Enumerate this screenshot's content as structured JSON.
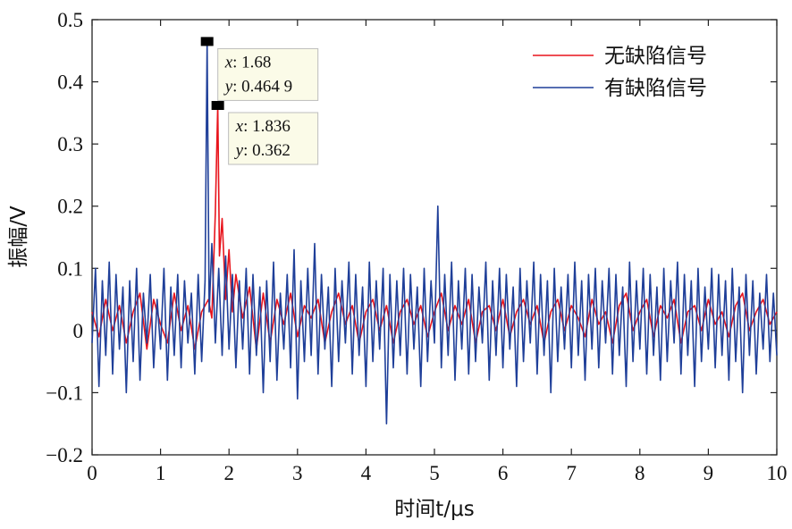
{
  "chart_data": {
    "type": "line",
    "xlabel": "时间t/μs",
    "ylabel": "振幅/V",
    "xlim": [
      0,
      10
    ],
    "ylim": [
      -0.2,
      0.5
    ],
    "x_ticks": [
      "0",
      "1",
      "2",
      "3",
      "4",
      "5",
      "6",
      "7",
      "8",
      "9",
      "10"
    ],
    "y_ticks": [
      "−0.2",
      "−0.1",
      "0",
      "0.1",
      "0.2",
      "0.3",
      "0.4",
      "0.5"
    ],
    "grid": false,
    "legend_position": "top-right",
    "series": [
      {
        "name": "无缺陷信号",
        "color": "#e8141c",
        "points": [
          [
            0,
            0.03
          ],
          [
            0.1,
            -0.01
          ],
          [
            0.2,
            0.05
          ],
          [
            0.3,
            0.0
          ],
          [
            0.4,
            0.04
          ],
          [
            0.5,
            -0.02
          ],
          [
            0.6,
            0.03
          ],
          [
            0.7,
            0.06
          ],
          [
            0.8,
            -0.03
          ],
          [
            0.9,
            0.05
          ],
          [
            1.0,
            0.01
          ],
          [
            1.1,
            -0.02
          ],
          [
            1.2,
            0.06
          ],
          [
            1.3,
            0.0
          ],
          [
            1.4,
            0.04
          ],
          [
            1.5,
            -0.03
          ],
          [
            1.6,
            0.03
          ],
          [
            1.7,
            0.05
          ],
          [
            1.75,
            0.02
          ],
          [
            1.8,
            0.19
          ],
          [
            1.836,
            0.362
          ],
          [
            1.86,
            0.12
          ],
          [
            1.9,
            0.18
          ],
          [
            1.95,
            0.05
          ],
          [
            2.0,
            0.13
          ],
          [
            2.05,
            0.03
          ],
          [
            2.1,
            0.09
          ],
          [
            2.2,
            0.02
          ],
          [
            2.3,
            0.07
          ],
          [
            2.4,
            -0.03
          ],
          [
            2.5,
            0.06
          ],
          [
            2.6,
            -0.02
          ],
          [
            2.7,
            0.05
          ],
          [
            2.8,
            0.01
          ],
          [
            2.9,
            0.06
          ],
          [
            3.0,
            -0.01
          ],
          [
            3.1,
            0.04
          ],
          [
            3.2,
            0.02
          ],
          [
            3.3,
            0.05
          ],
          [
            3.4,
            -0.02
          ],
          [
            3.5,
            0.03
          ],
          [
            3.6,
            0.06
          ],
          [
            3.7,
            0.01
          ],
          [
            3.8,
            0.04
          ],
          [
            3.9,
            -0.02
          ],
          [
            4.0,
            0.03
          ],
          [
            4.1,
            0.05
          ],
          [
            4.2,
            0.0
          ],
          [
            4.3,
            0.04
          ],
          [
            4.4,
            -0.02
          ],
          [
            4.5,
            0.03
          ],
          [
            4.6,
            0.05
          ],
          [
            4.7,
            0.01
          ],
          [
            4.8,
            0.04
          ],
          [
            4.9,
            -0.01
          ],
          [
            5.0,
            0.03
          ],
          [
            5.1,
            0.06
          ],
          [
            5.2,
            0.0
          ],
          [
            5.3,
            0.04
          ],
          [
            5.4,
            0.01
          ],
          [
            5.5,
            0.05
          ],
          [
            5.6,
            -0.02
          ],
          [
            5.7,
            0.03
          ],
          [
            5.8,
            0.04
          ],
          [
            5.9,
            0.0
          ],
          [
            6.0,
            0.05
          ],
          [
            6.1,
            -0.01
          ],
          [
            6.2,
            0.03
          ],
          [
            6.3,
            0.05
          ],
          [
            6.4,
            0.01
          ],
          [
            6.5,
            0.04
          ],
          [
            6.6,
            -0.02
          ],
          [
            6.7,
            0.03
          ],
          [
            6.8,
            0.05
          ],
          [
            6.9,
            0.0
          ],
          [
            7.0,
            0.04
          ],
          [
            7.1,
            0.02
          ],
          [
            7.2,
            -0.01
          ],
          [
            7.3,
            0.05
          ],
          [
            7.4,
            0.01
          ],
          [
            7.5,
            0.03
          ],
          [
            7.6,
            -0.02
          ],
          [
            7.7,
            0.04
          ],
          [
            7.8,
            0.06
          ],
          [
            7.9,
            0.0
          ],
          [
            8.0,
            0.03
          ],
          [
            8.1,
            0.05
          ],
          [
            8.2,
            -0.01
          ],
          [
            8.3,
            0.04
          ],
          [
            8.4,
            0.02
          ],
          [
            8.5,
            0.05
          ],
          [
            8.6,
            -0.02
          ],
          [
            8.7,
            0.03
          ],
          [
            8.8,
            0.04
          ],
          [
            8.9,
            0.0
          ],
          [
            9.0,
            0.05
          ],
          [
            9.1,
            0.01
          ],
          [
            9.2,
            0.03
          ],
          [
            9.3,
            -0.01
          ],
          [
            9.4,
            0.04
          ],
          [
            9.5,
            0.06
          ],
          [
            9.6,
            0.0
          ],
          [
            9.7,
            0.03
          ],
          [
            9.8,
            0.05
          ],
          [
            9.9,
            0.01
          ],
          [
            10.0,
            0.03
          ]
        ]
      },
      {
        "name": "有缺陷信号",
        "color": "#1f3f99",
        "points": [
          [
            0,
            -0.02
          ],
          [
            0.05,
            0.1
          ],
          [
            0.1,
            -0.09
          ],
          [
            0.15,
            0.08
          ],
          [
            0.2,
            -0.04
          ],
          [
            0.25,
            0.11
          ],
          [
            0.3,
            -0.07
          ],
          [
            0.35,
            0.09
          ],
          [
            0.4,
            -0.03
          ],
          [
            0.45,
            0.07
          ],
          [
            0.5,
            -0.1
          ],
          [
            0.55,
            0.08
          ],
          [
            0.6,
            -0.05
          ],
          [
            0.65,
            0.1
          ],
          [
            0.7,
            -0.08
          ],
          [
            0.75,
            0.06
          ],
          [
            0.8,
            -0.02
          ],
          [
            0.85,
            0.09
          ],
          [
            0.9,
            -0.06
          ],
          [
            0.95,
            0.05
          ],
          [
            1.0,
            -0.03
          ],
          [
            1.05,
            0.1
          ],
          [
            1.1,
            -0.08
          ],
          [
            1.15,
            0.07
          ],
          [
            1.2,
            -0.04
          ],
          [
            1.25,
            0.09
          ],
          [
            1.3,
            -0.06
          ],
          [
            1.35,
            0.08
          ],
          [
            1.4,
            -0.02
          ],
          [
            1.45,
            0.06
          ],
          [
            1.5,
            -0.07
          ],
          [
            1.55,
            0.09
          ],
          [
            1.6,
            -0.05
          ],
          [
            1.65,
            0.08
          ],
          [
            1.68,
            0.4649
          ],
          [
            1.71,
            0.03
          ],
          [
            1.75,
            0.14
          ],
          [
            1.8,
            -0.02
          ],
          [
            1.85,
            0.1
          ],
          [
            1.9,
            -0.04
          ],
          [
            1.95,
            0.12
          ],
          [
            2.0,
            -0.03
          ],
          [
            2.05,
            0.09
          ],
          [
            2.1,
            -0.06
          ],
          [
            2.15,
            0.08
          ],
          [
            2.2,
            -0.03
          ],
          [
            2.25,
            0.1
          ],
          [
            2.3,
            -0.07
          ],
          [
            2.35,
            0.09
          ],
          [
            2.4,
            -0.04
          ],
          [
            2.45,
            0.07
          ],
          [
            2.5,
            -0.1
          ],
          [
            2.55,
            0.08
          ],
          [
            2.6,
            -0.05
          ],
          [
            2.65,
            0.11
          ],
          [
            2.7,
            -0.08
          ],
          [
            2.75,
            0.06
          ],
          [
            2.8,
            -0.03
          ],
          [
            2.85,
            0.09
          ],
          [
            2.9,
            -0.06
          ],
          [
            2.95,
            0.13
          ],
          [
            3.0,
            -0.11
          ],
          [
            3.05,
            0.08
          ],
          [
            3.1,
            -0.05
          ],
          [
            3.15,
            0.1
          ],
          [
            3.2,
            -0.04
          ],
          [
            3.25,
            0.14
          ],
          [
            3.3,
            -0.07
          ],
          [
            3.35,
            0.09
          ],
          [
            3.4,
            -0.03
          ],
          [
            3.45,
            0.07
          ],
          [
            3.5,
            -0.09
          ],
          [
            3.55,
            0.1
          ],
          [
            3.6,
            -0.05
          ],
          [
            3.65,
            0.08
          ],
          [
            3.7,
            -0.02
          ],
          [
            3.75,
            0.11
          ],
          [
            3.8,
            -0.07
          ],
          [
            3.85,
            0.09
          ],
          [
            3.9,
            -0.04
          ],
          [
            3.95,
            0.07
          ],
          [
            4.0,
            -0.09
          ],
          [
            4.05,
            0.11
          ],
          [
            4.1,
            -0.05
          ],
          [
            4.15,
            0.08
          ],
          [
            4.2,
            -0.03
          ],
          [
            4.25,
            0.1
          ],
          [
            4.3,
            -0.15
          ],
          [
            4.35,
            0.09
          ],
          [
            4.4,
            -0.06
          ],
          [
            4.45,
            0.08
          ],
          [
            4.5,
            -0.04
          ],
          [
            4.55,
            0.1
          ],
          [
            4.6,
            -0.07
          ],
          [
            4.65,
            0.09
          ],
          [
            4.7,
            -0.03
          ],
          [
            4.75,
            0.07
          ],
          [
            4.8,
            -0.09
          ],
          [
            4.85,
            0.1
          ],
          [
            4.9,
            -0.05
          ],
          [
            4.95,
            0.08
          ],
          [
            5.0,
            -0.02
          ],
          [
            5.05,
            0.2
          ],
          [
            5.1,
            -0.06
          ],
          [
            5.15,
            0.09
          ],
          [
            5.2,
            -0.04
          ],
          [
            5.25,
            0.11
          ],
          [
            5.3,
            -0.08
          ],
          [
            5.35,
            0.08
          ],
          [
            5.4,
            -0.03
          ],
          [
            5.45,
            0.1
          ],
          [
            5.5,
            -0.07
          ],
          [
            5.55,
            0.09
          ],
          [
            5.6,
            -0.05
          ],
          [
            5.65,
            0.07
          ],
          [
            5.7,
            -0.02
          ],
          [
            5.75,
            0.11
          ],
          [
            5.8,
            -0.08
          ],
          [
            5.85,
            0.08
          ],
          [
            5.9,
            -0.04
          ],
          [
            5.95,
            0.1
          ],
          [
            6.0,
            -0.06
          ],
          [
            6.05,
            0.09
          ],
          [
            6.1,
            -0.03
          ],
          [
            6.15,
            0.07
          ],
          [
            6.2,
            -0.09
          ],
          [
            6.25,
            0.1
          ],
          [
            6.3,
            -0.05
          ],
          [
            6.35,
            0.08
          ],
          [
            6.4,
            -0.02
          ],
          [
            6.45,
            0.11
          ],
          [
            6.5,
            -0.07
          ],
          [
            6.55,
            0.09
          ],
          [
            6.6,
            -0.04
          ],
          [
            6.65,
            0.08
          ],
          [
            6.7,
            -0.1
          ],
          [
            6.75,
            0.1
          ],
          [
            6.8,
            -0.05
          ],
          [
            6.85,
            0.07
          ],
          [
            6.9,
            -0.03
          ],
          [
            6.95,
            0.09
          ],
          [
            7.0,
            -0.06
          ],
          [
            7.05,
            0.11
          ],
          [
            7.1,
            -0.04
          ],
          [
            7.15,
            0.08
          ],
          [
            7.2,
            -0.08
          ],
          [
            7.25,
            0.09
          ],
          [
            7.3,
            -0.03
          ],
          [
            7.35,
            0.1
          ],
          [
            7.4,
            -0.06
          ],
          [
            7.45,
            0.08
          ],
          [
            7.5,
            -0.02
          ],
          [
            7.55,
            0.1
          ],
          [
            7.6,
            -0.07
          ],
          [
            7.65,
            0.09
          ],
          [
            7.7,
            -0.04
          ],
          [
            7.75,
            0.07
          ],
          [
            7.8,
            -0.09
          ],
          [
            7.85,
            0.11
          ],
          [
            7.9,
            -0.05
          ],
          [
            7.95,
            0.08
          ],
          [
            8.0,
            -0.03
          ],
          [
            8.05,
            0.1
          ],
          [
            8.1,
            -0.07
          ],
          [
            8.15,
            0.09
          ],
          [
            8.2,
            -0.04
          ],
          [
            8.25,
            0.07
          ],
          [
            8.3,
            -0.08
          ],
          [
            8.35,
            0.1
          ],
          [
            8.4,
            -0.05
          ],
          [
            8.45,
            0.08
          ],
          [
            8.5,
            -0.02
          ],
          [
            8.55,
            0.11
          ],
          [
            8.6,
            -0.07
          ],
          [
            8.65,
            0.09
          ],
          [
            8.7,
            -0.04
          ],
          [
            8.75,
            0.08
          ],
          [
            8.8,
            -0.09
          ],
          [
            8.85,
            0.1
          ],
          [
            8.9,
            -0.05
          ],
          [
            8.95,
            0.07
          ],
          [
            9.0,
            -0.03
          ],
          [
            9.05,
            0.1
          ],
          [
            9.1,
            -0.06
          ],
          [
            9.15,
            0.09
          ],
          [
            9.2,
            -0.04
          ],
          [
            9.25,
            0.08
          ],
          [
            9.3,
            -0.08
          ],
          [
            9.35,
            0.1
          ],
          [
            9.4,
            -0.05
          ],
          [
            9.45,
            0.07
          ],
          [
            9.5,
            -0.1
          ],
          [
            9.55,
            0.09
          ],
          [
            9.6,
            -0.04
          ],
          [
            9.65,
            0.08
          ],
          [
            9.7,
            -0.07
          ],
          [
            9.75,
            0.06
          ],
          [
            9.8,
            -0.03
          ],
          [
            9.85,
            0.09
          ],
          [
            9.9,
            -0.05
          ],
          [
            9.95,
            0.06
          ],
          [
            10.0,
            -0.04
          ]
        ]
      }
    ],
    "annotations": [
      {
        "series": "有缺陷信号",
        "x": 1.68,
        "y": 0.4649,
        "x_text": "1.68",
        "y_text": "0.464 9"
      },
      {
        "series": "无缺陷信号",
        "x": 1.836,
        "y": 0.362,
        "x_text": "1.836",
        "y_text": "0.362"
      }
    ]
  }
}
